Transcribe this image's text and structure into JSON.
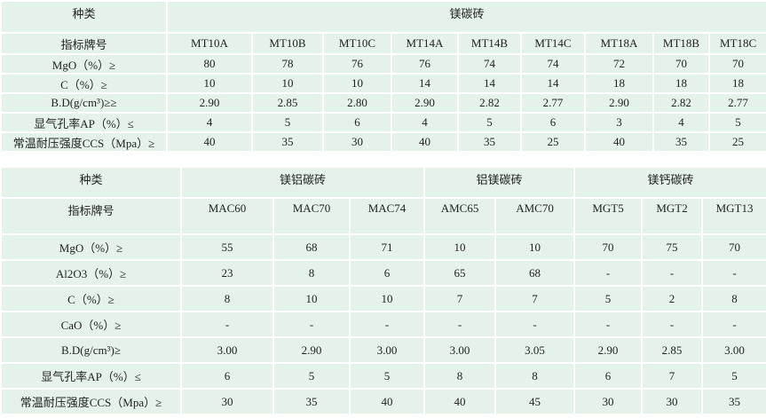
{
  "table1": {
    "category_label": "种类",
    "group": "镁碳砖",
    "grade_label": "指标牌号",
    "grades": [
      "MT10A",
      "MT10B",
      "MT10C",
      "MT14A",
      "MT14B",
      "MT14C",
      "MT18A",
      "MT18B",
      "MT18C"
    ],
    "rows": [
      {
        "label": "MgO（%）≥",
        "values": [
          "80",
          "78",
          "76",
          "76",
          "74",
          "74",
          "72",
          "70",
          "70"
        ]
      },
      {
        "label": "C（%）≥",
        "values": [
          "10",
          "10",
          "10",
          "14",
          "14",
          "14",
          "18",
          "18",
          "18"
        ]
      },
      {
        "label": "B.D(g/cm³)≥≥",
        "values": [
          "2.90",
          "2.85",
          "2.80",
          "2.90",
          "2.82",
          "2.77",
          "2.90",
          "2.82",
          "2.77"
        ]
      },
      {
        "label": "显气孔率AP（%）≤",
        "values": [
          "4",
          "5",
          "6",
          "4",
          "5",
          "6",
          "3",
          "4",
          "5"
        ]
      },
      {
        "label": "常温耐压强度CCS（Mpa）≥",
        "values": [
          "40",
          "35",
          "30",
          "40",
          "35",
          "25",
          "40",
          "35",
          "25"
        ]
      }
    ]
  },
  "table2": {
    "category_label": "种类",
    "groups": [
      "镁铝碳砖",
      "铝镁碳砖",
      "镁钙碳砖"
    ],
    "grade_label": "指标牌号",
    "grades": [
      "MAC60",
      "MAC70",
      "MAC74",
      "AMC65",
      "AMC70",
      "MGT5",
      "MGT2",
      "MGT13"
    ],
    "rows": [
      {
        "label": "MgO（%）≥",
        "values": [
          "55",
          "68",
          "71",
          "10",
          "10",
          "70",
          "75",
          "70"
        ]
      },
      {
        "label": "Al2O3（%）≥",
        "values": [
          "23",
          "8",
          "6",
          "65",
          "68",
          "-",
          "-",
          "-"
        ]
      },
      {
        "label": "C（%）≥",
        "values": [
          "8",
          "10",
          "10",
          "7",
          "7",
          "5",
          "2",
          "8"
        ]
      },
      {
        "label": "CaO（%）≥",
        "values": [
          "-",
          "-",
          "-",
          "-",
          "-",
          "-",
          "-",
          "-"
        ]
      },
      {
        "label": "B.D(g/cm³)≥",
        "values": [
          "3.00",
          "2.90",
          "3.00",
          "3.00",
          "3.05",
          "2.90",
          "2.85",
          "3.00"
        ]
      },
      {
        "label": "显气孔率AP（%）≤",
        "values": [
          "6",
          "5",
          "5",
          "8",
          "8",
          "6",
          "7",
          "5"
        ]
      },
      {
        "label": "常温耐压强度CCS（Mpa）≥",
        "values": [
          "30",
          "35",
          "40",
          "40",
          "45",
          "30",
          "30",
          "35"
        ]
      }
    ]
  }
}
